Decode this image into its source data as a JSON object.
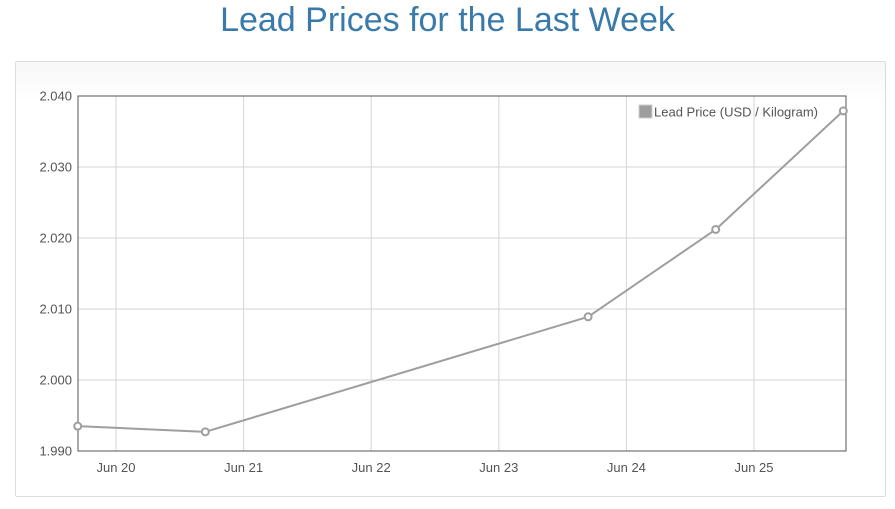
{
  "page": {
    "title": "Lead Prices for the Last Week"
  },
  "colors": {
    "title": "#3a7aab",
    "series_line": "#9e9e9e",
    "grid": "#d6d6d6",
    "axis": "#545454"
  },
  "chart_data": {
    "type": "line",
    "title": "Lead Prices for the Last Week",
    "xlabel": "",
    "ylabel": "",
    "x_ticks": [
      "Jun 20",
      "Jun 21",
      "Jun 22",
      "Jun 23",
      "Jun 24",
      "Jun 25"
    ],
    "y_ticks": [
      "1.990",
      "2.000",
      "2.010",
      "2.020",
      "2.030",
      "2.040"
    ],
    "ylim": [
      1.99,
      2.04
    ],
    "grid": true,
    "legend_position": "top-right",
    "series": [
      {
        "name": "Lead Price (USD / Kilogram)",
        "points": [
          {
            "x": "Jun 19",
            "y": 1.9935
          },
          {
            "x": "Jun 20",
            "y": 1.9927
          },
          {
            "x": "Jun 23",
            "y": 2.0089
          },
          {
            "x": "Jun 24",
            "y": 2.0212
          },
          {
            "x": "Jun 25",
            "y": 2.0379
          }
        ]
      }
    ]
  }
}
